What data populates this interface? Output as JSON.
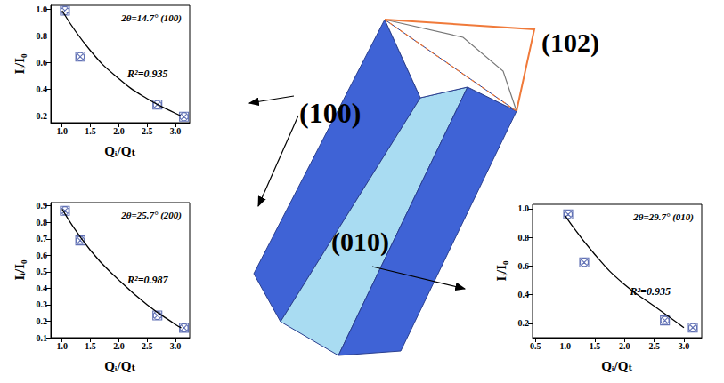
{
  "chart_data": [
    {
      "type": "scatter",
      "title": "2θ=14.7° (100)",
      "annotation": "R²=0.935",
      "x_label": "Qᵢ/Qₜ",
      "y_label": "Iᵢ/I₀",
      "grid": false,
      "xlim": [
        0.8,
        3.25
      ],
      "xticks": [
        {
          "value": 1,
          "label": "1.0"
        },
        1.5,
        {
          "value": 2,
          "label": "2.0"
        },
        2.5,
        {
          "value": 3,
          "label": "3.0"
        }
      ],
      "ylim": [
        0.15,
        1.03
      ],
      "yticks": [
        0.2,
        0.4,
        0.6,
        0.8,
        {
          "value": 1,
          "label": "1.0"
        }
      ],
      "series": [
        {
          "type": "scatter",
          "marker": "circle-x",
          "color": "#3b4fa3",
          "x": [
            1.05,
            1.32,
            2.68,
            3.15
          ],
          "values": [
            0.99,
            0.645,
            0.285,
            0.195
          ]
        },
        {
          "type": "line",
          "line_style": "solid",
          "color": "#000000",
          "x": [
            1.0,
            1.5,
            2.0,
            2.5,
            3.0,
            3.1
          ],
          "values": [
            0.99,
            0.69,
            0.48,
            0.33,
            0.22,
            0.2
          ]
        }
      ]
    },
    {
      "type": "scatter",
      "title": "2θ=25.7° (200)",
      "annotation": "R²=0.987",
      "x_label": "Qᵢ/Qₜ",
      "y_label": "Iᵢ/I₀",
      "grid": false,
      "xlim": [
        0.8,
        3.25
      ],
      "xticks": [
        {
          "value": 1,
          "label": "1.0"
        },
        1.5,
        {
          "value": 2,
          "label": "2.0"
        },
        2.5,
        {
          "value": 3,
          "label": "3.0"
        }
      ],
      "ylim": [
        0.1,
        0.92
      ],
      "yticks": [
        0.1,
        0.2,
        0.3,
        0.4,
        0.5,
        0.6,
        0.7,
        0.8,
        0.9
      ],
      "series": [
        {
          "type": "scatter",
          "marker": "circle-x",
          "color": "#3b4fa3",
          "x": [
            1.05,
            1.32,
            2.68,
            3.15
          ],
          "values": [
            0.87,
            0.69,
            0.235,
            0.16
          ]
        },
        {
          "type": "line",
          "line_style": "solid",
          "color": "#000000",
          "x": [
            1.0,
            1.5,
            2.0,
            2.5,
            3.0,
            3.1
          ],
          "values": [
            0.88,
            0.63,
            0.45,
            0.3,
            0.18,
            0.16
          ]
        }
      ]
    },
    {
      "type": "scatter",
      "title": "2θ=29.7° (010)",
      "annotation": "R²=0.935",
      "x_label": "Qᵢ/Qₜ",
      "y_label": "Iᵢ/I₀",
      "grid": false,
      "xlim": [
        0.45,
        3.3
      ],
      "xticks": [
        0.5,
        {
          "value": 1,
          "label": "1.0"
        },
        1.5,
        {
          "value": 2,
          "label": "2.0"
        },
        2.5,
        {
          "value": 3,
          "label": "3.0"
        }
      ],
      "ylim": [
        0.1,
        1.03
      ],
      "yticks": [
        0.2,
        0.4,
        0.6,
        0.8,
        {
          "value": 1,
          "label": "1.0"
        }
      ],
      "series": [
        {
          "type": "scatter",
          "marker": "circle-x",
          "color": "#3b4fa3",
          "x": [
            1.05,
            1.32,
            2.68,
            3.15
          ],
          "values": [
            0.96,
            0.625,
            0.22,
            0.17
          ]
        },
        {
          "type": "line",
          "line_style": "solid",
          "color": "#000000",
          "x": [
            1.0,
            1.5,
            2.0,
            2.5,
            3.0
          ],
          "values": [
            0.95,
            0.68,
            0.47,
            0.32,
            0.17
          ]
        }
      ]
    }
  ],
  "diagram": {
    "labels": {
      "face_100": "(100)",
      "face_010": "(010)",
      "face_102": "(102)"
    }
  }
}
